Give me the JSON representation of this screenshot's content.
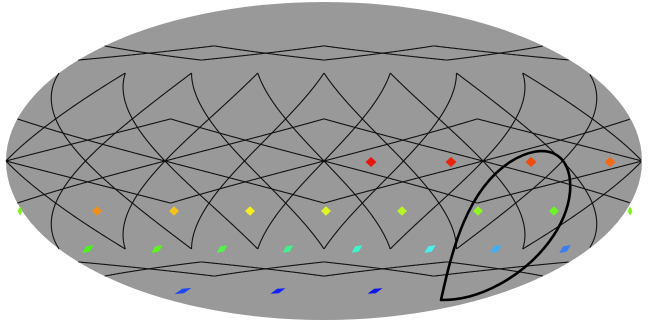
{
  "map": {
    "projection": "mollweide",
    "background_color": "#ffffff",
    "sphere_fill": "#999999",
    "grid_color": "#111111",
    "healpix_grid": {
      "nside": 2,
      "shown": true
    },
    "outline_shape": {
      "shape": "teardrop",
      "color": "#000000"
    }
  },
  "markers": [
    {
      "color": "#e8170b"
    },
    {
      "color": "#e8250b"
    },
    {
      "color": "#f04a0e"
    },
    {
      "color": "#f26a14"
    },
    {
      "color": "#7bf51b"
    },
    {
      "color": "#f0901a"
    },
    {
      "color": "#f2c21e"
    },
    {
      "color": "#f5ee22"
    },
    {
      "color": "#e1f524"
    },
    {
      "color": "#b8f524"
    },
    {
      "color": "#8ff524"
    },
    {
      "color": "#6cf524"
    },
    {
      "color": "#80f222"
    },
    {
      "color": "#4cf21c"
    },
    {
      "color": "#5af51e"
    },
    {
      "color": "#55f24a"
    },
    {
      "color": "#3ef28c"
    },
    {
      "color": "#3ff5cc"
    },
    {
      "color": "#48f0f0"
    },
    {
      "color": "#3cb0f5"
    },
    {
      "color": "#3a7df0"
    },
    {
      "color": "#1e48f2"
    },
    {
      "color": "#1022f5"
    },
    {
      "color": "#0e16e8"
    }
  ]
}
